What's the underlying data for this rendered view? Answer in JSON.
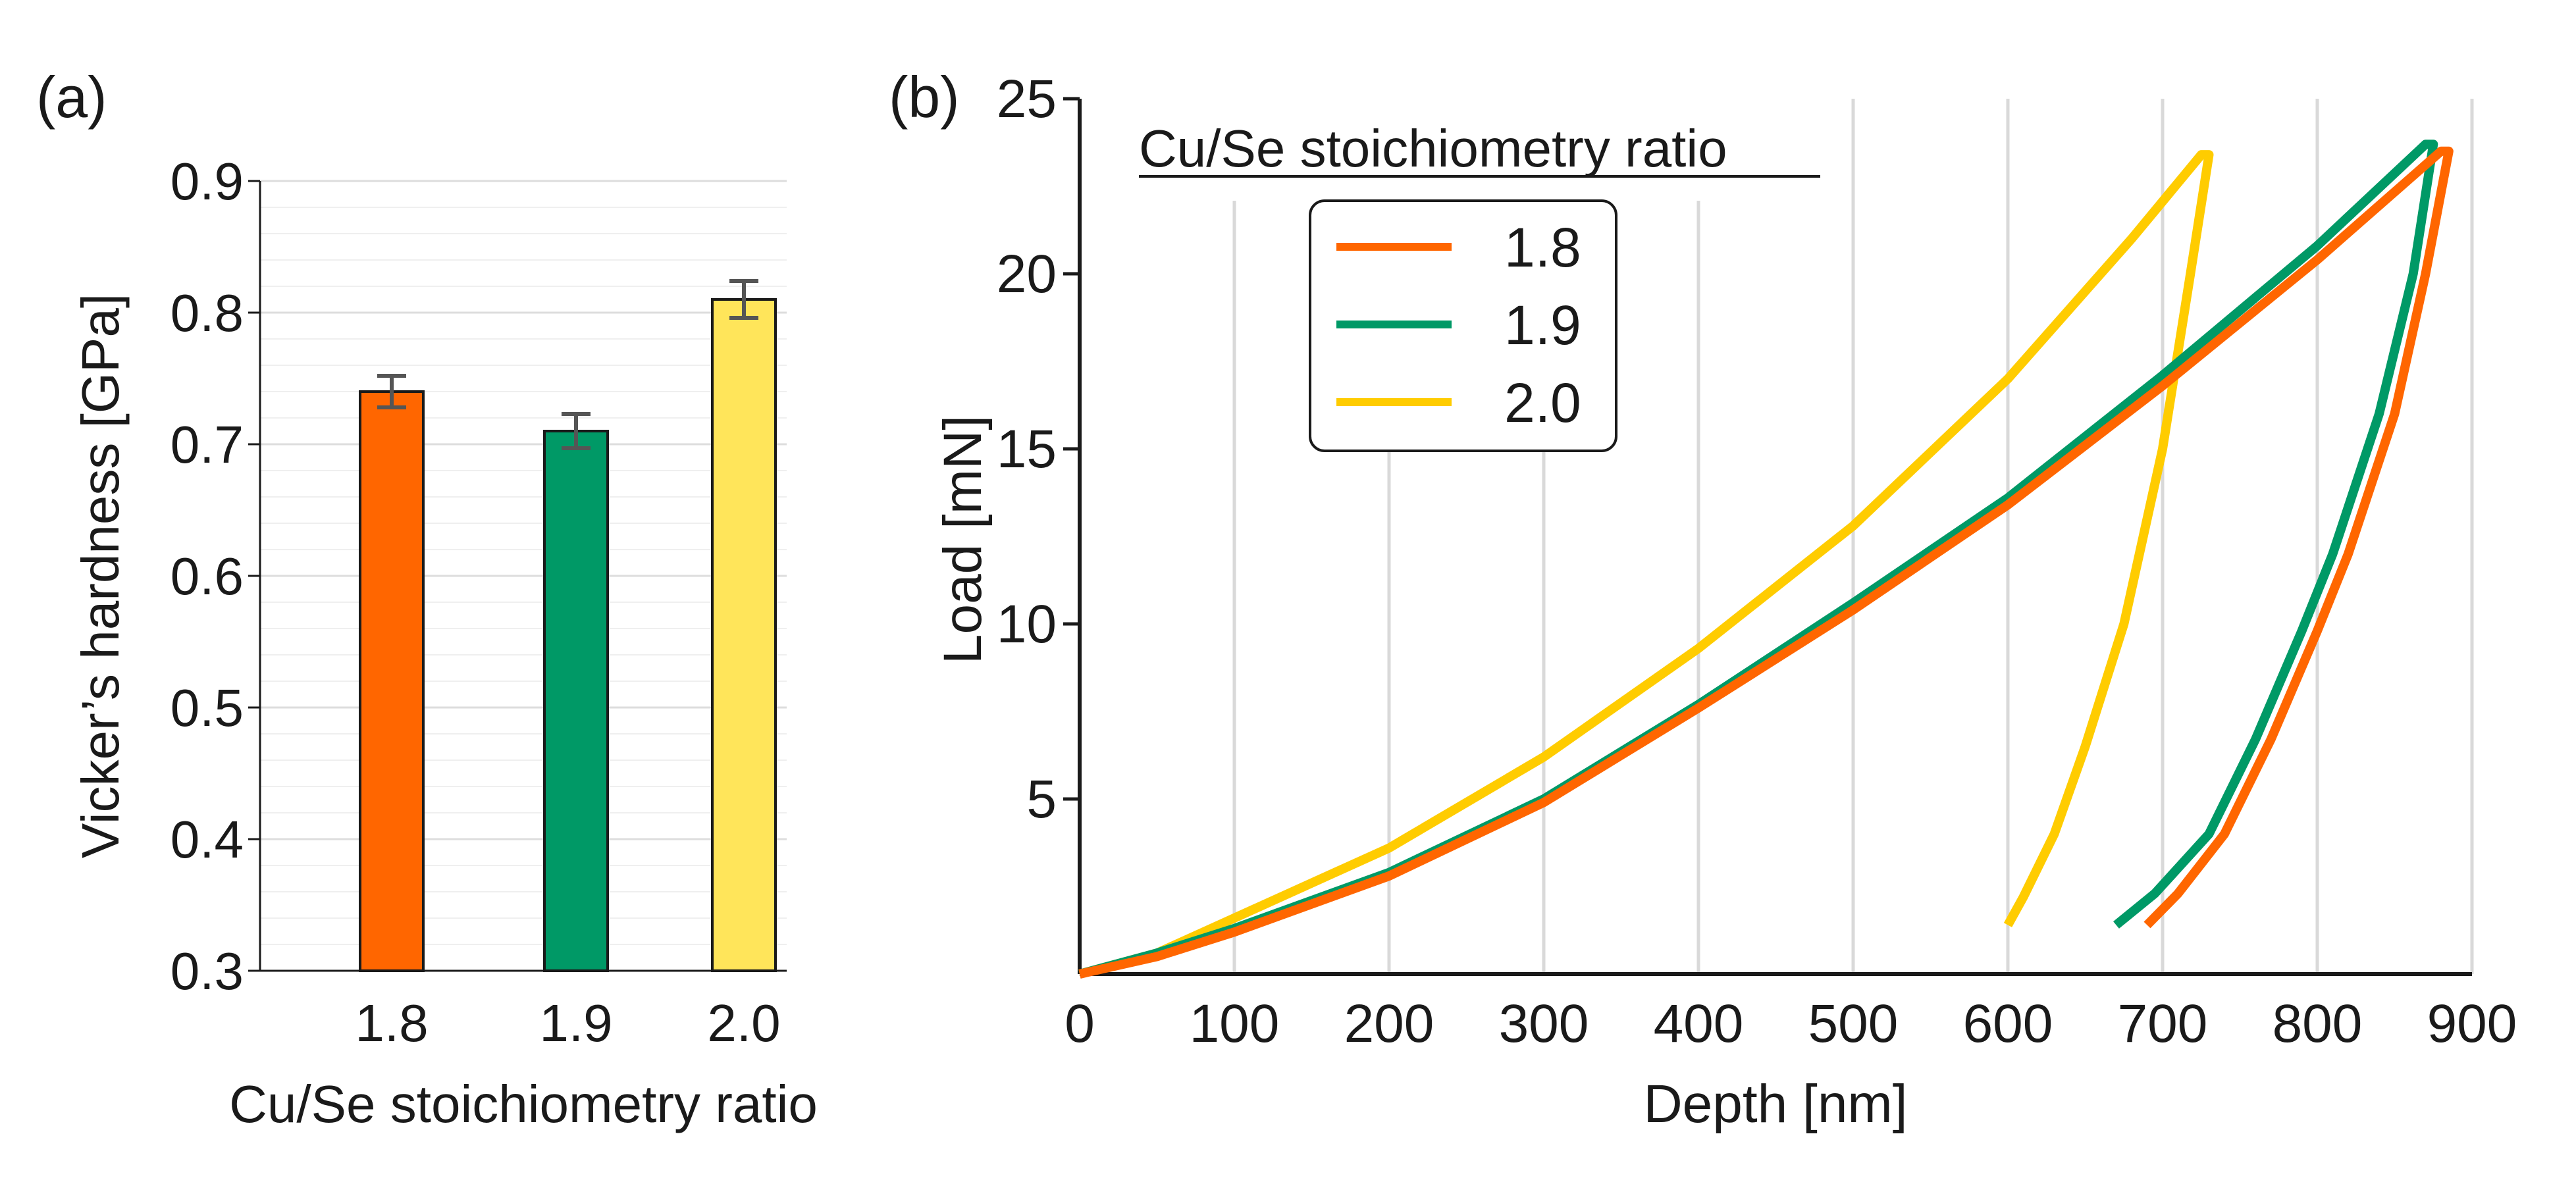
{
  "panels": {
    "a_label": "(a)",
    "b_label": "(b)"
  },
  "colors": {
    "c18": "#ff6600",
    "c19": "#009966",
    "c20": "#ffe55a",
    "c20_line": "#ffcc00",
    "err": "#555555"
  },
  "chart_data": [
    {
      "type": "bar",
      "title": "",
      "xlabel": "Cu/Se stoichiometry ratio",
      "ylabel": "Vicker’s hardness [GPa]",
      "categories": [
        "1.8",
        "1.9",
        "2.0"
      ],
      "values": [
        0.74,
        0.71,
        0.81
      ],
      "errors": [
        0.012,
        0.013,
        0.014
      ],
      "ylim": [
        0.3,
        0.9
      ],
      "yticks": [
        "0.3",
        "0.4",
        "0.5",
        "0.6",
        "0.7",
        "0.8",
        "0.9"
      ],
      "grid": true
    },
    {
      "type": "line",
      "xlabel": "Depth [nm]",
      "ylabel": "Load [mN]",
      "xlim": [
        0,
        900
      ],
      "ylim": [
        0,
        25
      ],
      "xticks": [
        "0",
        "100",
        "200",
        "300",
        "400",
        "500",
        "600",
        "700",
        "800",
        "900"
      ],
      "yticks": [
        "5",
        "10",
        "15",
        "20",
        "25"
      ],
      "legend_title": "Cu/Se stoichiometry ratio",
      "legend_position": "top-left",
      "series": [
        {
          "name": "1.8",
          "x": [
            0,
            50,
            100,
            200,
            300,
            400,
            500,
            600,
            700,
            800,
            880,
            885,
            870,
            850,
            820,
            800,
            770,
            740,
            710,
            690
          ],
          "y": [
            0,
            0.5,
            1.2,
            2.8,
            4.9,
            7.6,
            10.4,
            13.4,
            16.8,
            20.4,
            23.5,
            23.5,
            20.0,
            16.0,
            12.0,
            9.8,
            6.7,
            4.0,
            2.3,
            1.4
          ]
        },
        {
          "name": "1.9",
          "x": [
            0,
            50,
            100,
            200,
            300,
            400,
            500,
            600,
            700,
            800,
            870,
            875,
            862,
            840,
            810,
            790,
            760,
            730,
            695,
            670
          ],
          "y": [
            0,
            0.6,
            1.3,
            2.9,
            5.0,
            7.7,
            10.6,
            13.6,
            17.1,
            20.8,
            23.7,
            23.7,
            20.0,
            16.0,
            12.0,
            9.8,
            6.7,
            4.0,
            2.3,
            1.4
          ]
        },
        {
          "name": "2.0",
          "x": [
            0,
            50,
            100,
            200,
            300,
            400,
            500,
            600,
            680,
            725,
            730,
            718,
            700,
            675,
            650,
            630,
            610,
            600
          ],
          "y": [
            0,
            0.6,
            1.6,
            3.6,
            6.2,
            9.3,
            12.8,
            17.0,
            21.0,
            23.4,
            23.4,
            20.0,
            15.0,
            10.0,
            6.5,
            4.0,
            2.2,
            1.4
          ]
        }
      ]
    }
  ]
}
